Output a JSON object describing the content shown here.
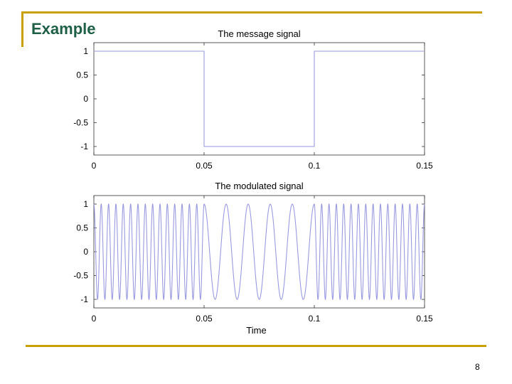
{
  "slide": {
    "title": "Example",
    "page_number": "8",
    "rule_color": "#c8a000",
    "title_color": "#1f5f47"
  },
  "chart_data": [
    {
      "type": "line",
      "title": "The message signal",
      "xlabel": "",
      "ylabel": "",
      "xlim": [
        0,
        0.15
      ],
      "ylim": [
        -1,
        1
      ],
      "xticks": [
        0,
        0.05,
        0.1,
        0.15
      ],
      "xtick_labels": [
        "0",
        "0.05",
        "0.1",
        "0.15"
      ],
      "yticks": [
        1,
        0.5,
        0,
        -0.5,
        -1
      ],
      "ytick_labels": [
        "1",
        "0.5",
        "0",
        "-0.5",
        "-1"
      ],
      "grid": false,
      "line_color": "#9a9ae0",
      "series": [
        {
          "x": [
            0,
            0.05,
            0.05,
            0.1,
            0.1,
            0.15
          ],
          "y": [
            1,
            1,
            -1,
            -1,
            1,
            1
          ]
        }
      ]
    },
    {
      "type": "line",
      "title": "The modulated signal",
      "xlabel": "Time",
      "ylabel": "",
      "xlim": [
        0,
        0.15
      ],
      "ylim": [
        -1,
        1
      ],
      "xticks": [
        0,
        0.05,
        0.1,
        0.15
      ],
      "xtick_labels": [
        "0",
        "0.05",
        "0.1",
        "0.15"
      ],
      "yticks": [
        1,
        0.5,
        0,
        -0.5,
        -1
      ],
      "ytick_labels": [
        "1",
        "0.5",
        "0",
        "-0.5",
        "-1"
      ],
      "grid": false,
      "line_color": "#9a9ae0",
      "carrier": {
        "description": "FM: cos(2*pi*f*t), f depends on message level",
        "freq_when_message_high": 300,
        "freq_when_message_low": 100,
        "segments": [
          [
            0,
            0.05,
            300
          ],
          [
            0.05,
            0.1,
            100
          ],
          [
            0.1,
            0.15,
            300
          ]
        ]
      }
    }
  ]
}
